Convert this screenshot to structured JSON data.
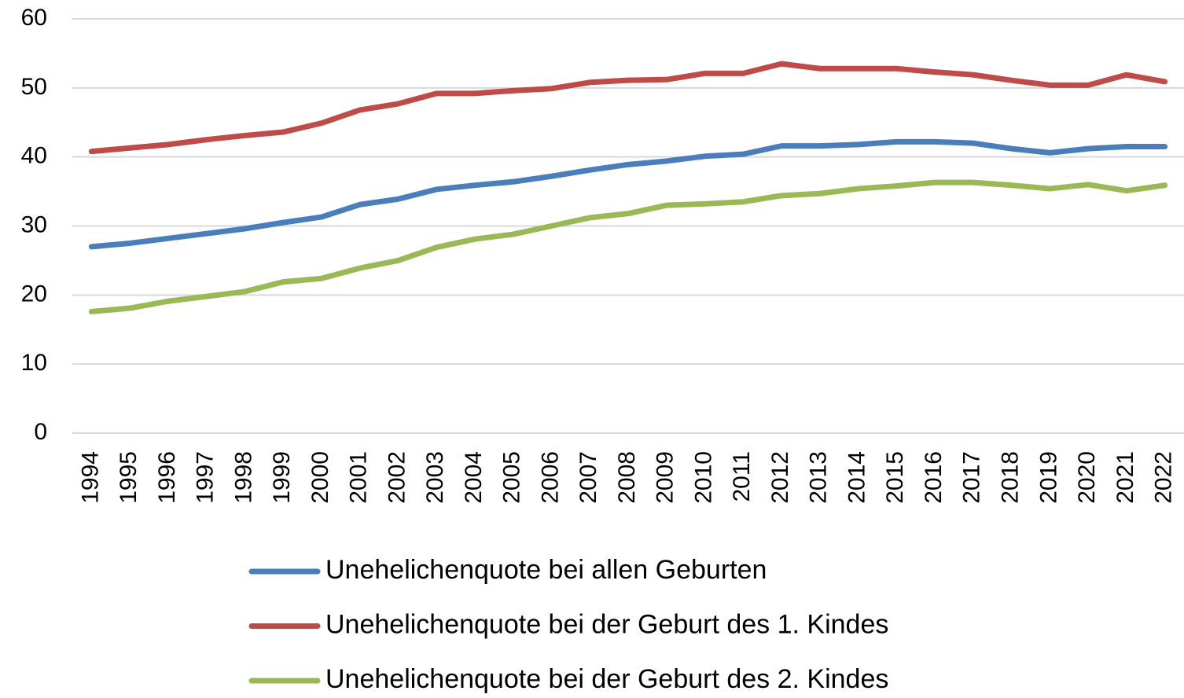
{
  "chart_data": {
    "type": "line",
    "categories": [
      "1994",
      "1995",
      "1996",
      "1997",
      "1998",
      "1999",
      "2000",
      "2001",
      "2002",
      "2003",
      "2004",
      "2005",
      "2006",
      "2007",
      "2008",
      "2009",
      "2010",
      "2011",
      "2012",
      "2013",
      "2014",
      "2015",
      "2016",
      "2017",
      "2018",
      "2019",
      "2020",
      "2021",
      "2022"
    ],
    "series": [
      {
        "name": "Unehelichenquote bei allen Geburten",
        "color": "#4a7ebb",
        "values": [
          27,
          27.5,
          28.2,
          28.9,
          29.6,
          30.5,
          31.3,
          33.1,
          33.9,
          35.3,
          35.9,
          36.4,
          37.2,
          38.1,
          38.9,
          39.4,
          40.1,
          40.4,
          41.6,
          41.6,
          41.8,
          42.2,
          42.2,
          42.0,
          41.2,
          40.6,
          41.2,
          41.5,
          41.5
        ]
      },
      {
        "name": "Unehelichenquote bei der Geburt des 1. Kindes",
        "color": "#be4b48",
        "values": [
          40.8,
          41.3,
          41.8,
          42.5,
          43.1,
          43.6,
          44.9,
          46.8,
          47.7,
          49.2,
          49.2,
          49.6,
          49.9,
          50.8,
          51.1,
          51.2,
          52.1,
          52.1,
          53.5,
          52.8,
          52.8,
          52.8,
          52.3,
          51.9,
          51.1,
          50.4,
          50.4,
          51.9,
          50.9
        ]
      },
      {
        "name": "Unehelichenquote bei der Geburt des 2. Kindes",
        "color": "#98b954",
        "values": [
          17.6,
          18.1,
          19.1,
          19.8,
          20.5,
          21.9,
          22.4,
          23.9,
          25.0,
          26.9,
          28.1,
          28.8,
          30.0,
          31.2,
          31.8,
          33.0,
          33.2,
          33.5,
          34.4,
          34.7,
          35.4,
          35.8,
          36.3,
          36.3,
          35.9,
          35.4,
          36.0,
          35.1,
          35.9
        ]
      }
    ],
    "ylim": [
      0,
      60
    ],
    "yticks": [
      0,
      10,
      20,
      30,
      40,
      50,
      60
    ],
    "grid": true,
    "legend": "bottom"
  }
}
